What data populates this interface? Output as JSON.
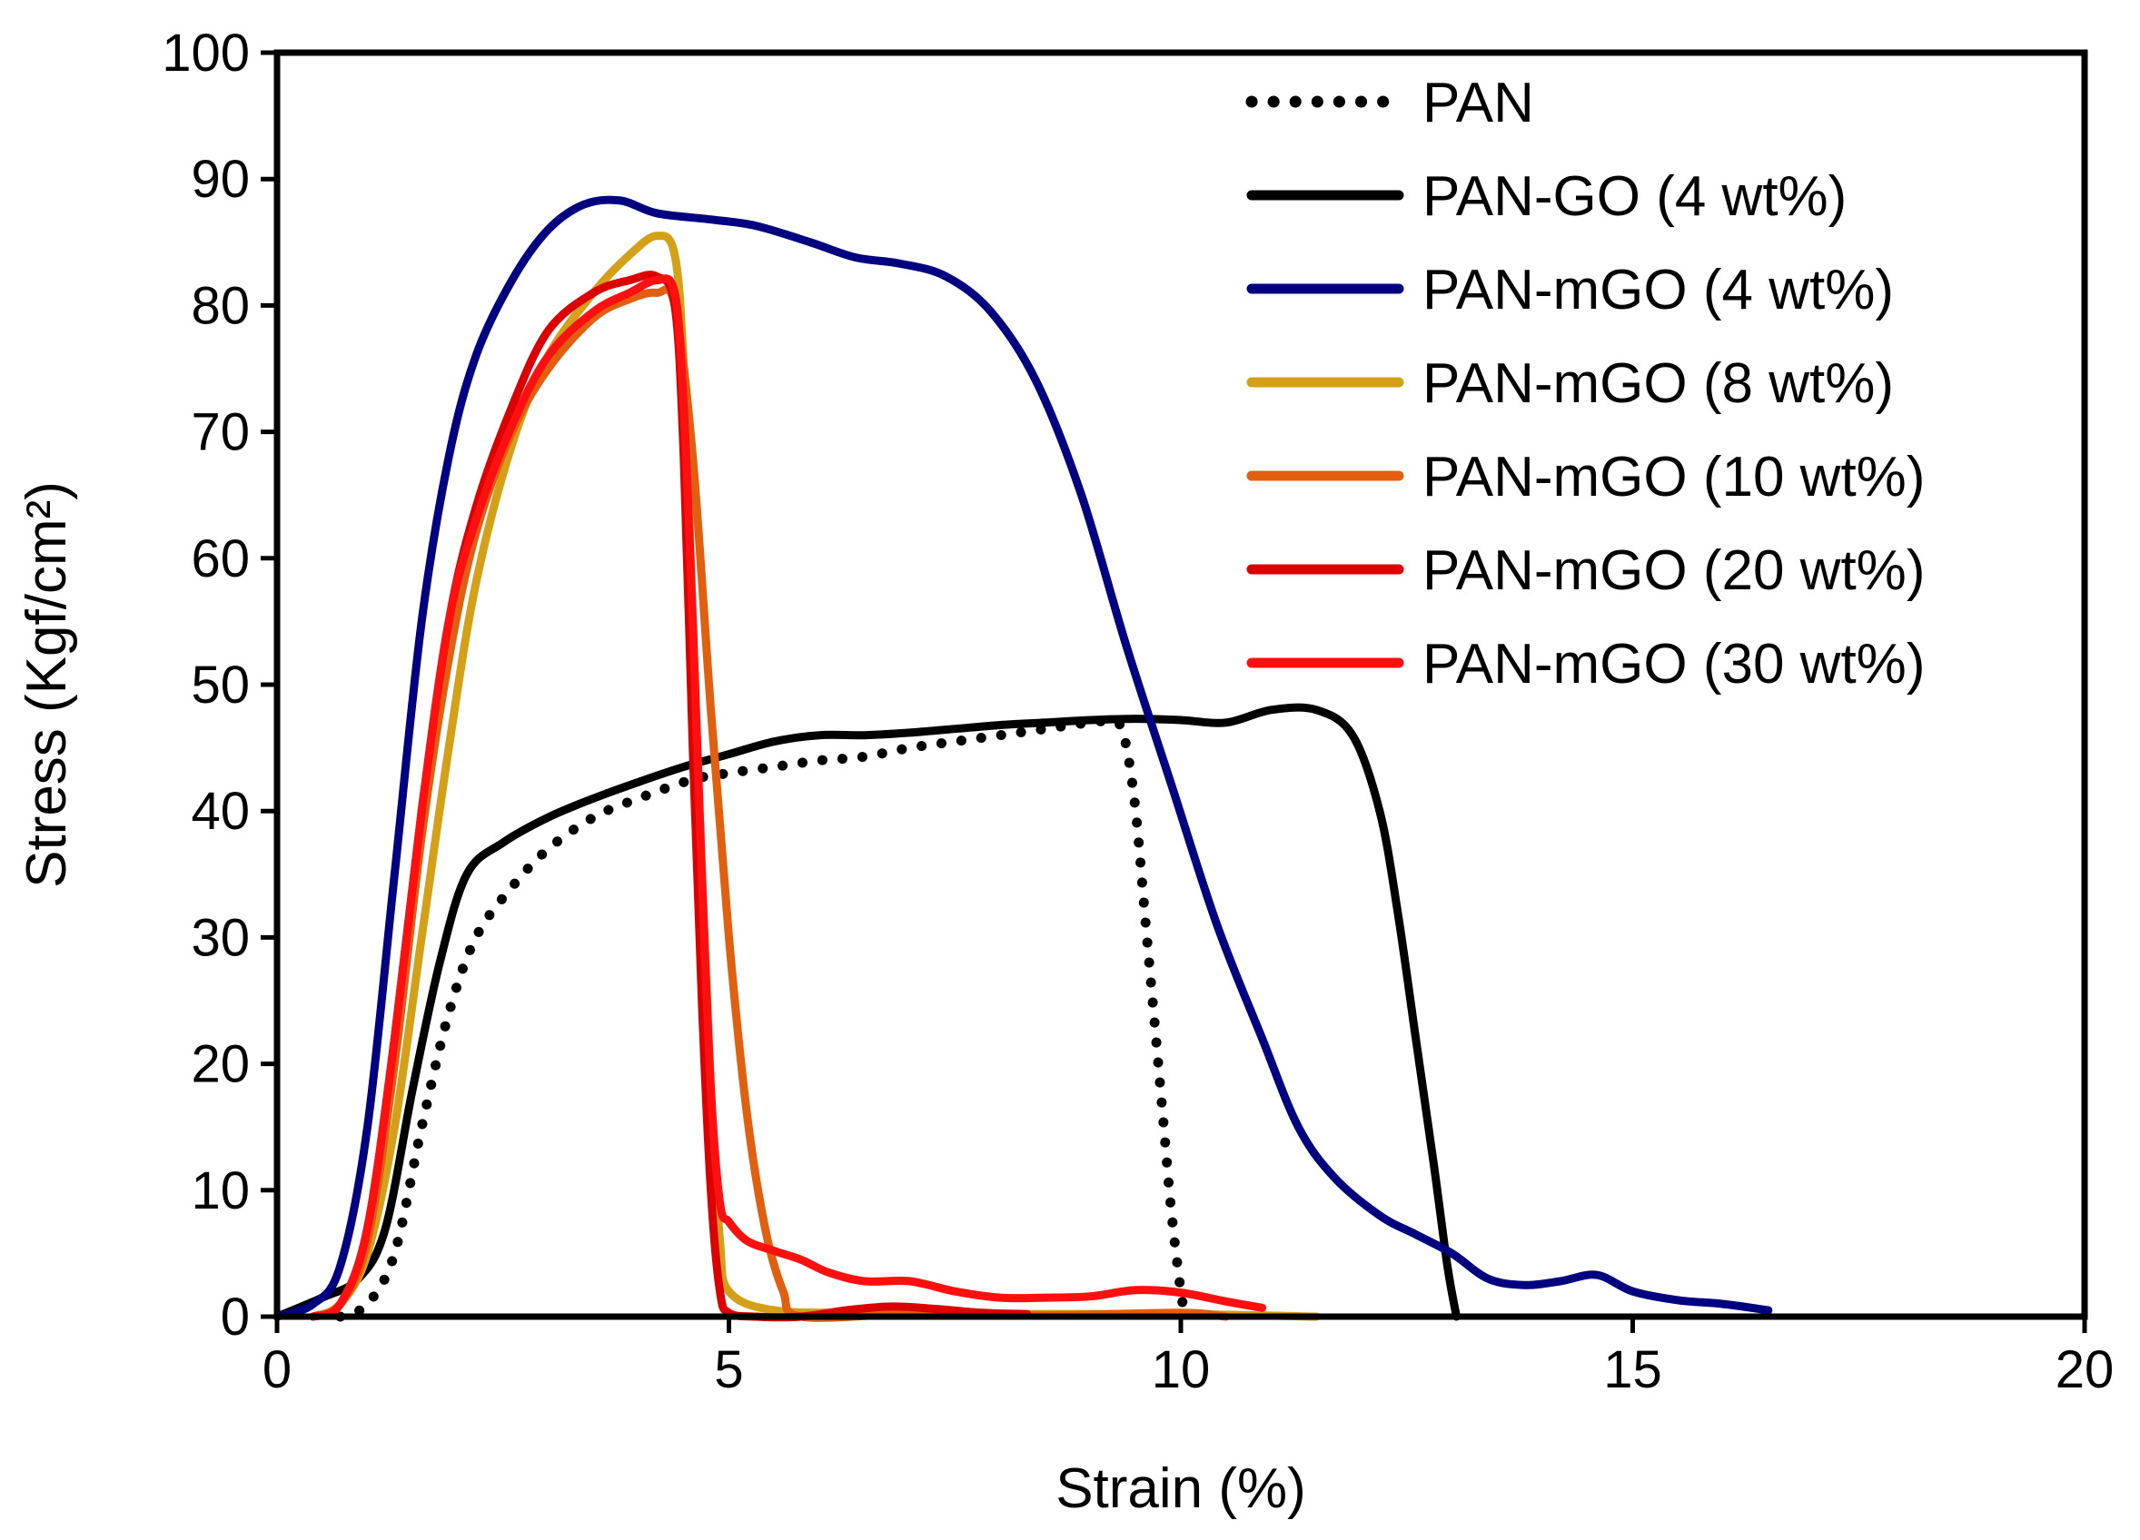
{
  "chart_data": {
    "type": "line",
    "title": "",
    "xlabel": "Strain (%)",
    "ylabel": "Stress (Kgf/cm²)",
    "xlim": [
      0,
      20
    ],
    "ylim": [
      0,
      100
    ],
    "xticks": [
      0,
      5,
      10,
      15,
      20
    ],
    "yticks": [
      0,
      10,
      20,
      30,
      40,
      50,
      60,
      70,
      80,
      90,
      100
    ],
    "grid": false,
    "legend_position": "top-right",
    "series": [
      {
        "name": "PAN",
        "color": "#000000",
        "style": "dotted",
        "points": [
          [
            0.7,
            0
          ],
          [
            1.0,
            1
          ],
          [
            1.3,
            5
          ],
          [
            1.6,
            15
          ],
          [
            1.9,
            24
          ],
          [
            2.2,
            30
          ],
          [
            2.6,
            34
          ],
          [
            3.0,
            37
          ],
          [
            3.5,
            39.5
          ],
          [
            4.0,
            41
          ],
          [
            4.6,
            42.5
          ],
          [
            5.0,
            43
          ],
          [
            5.5,
            43.5
          ],
          [
            6.0,
            44
          ],
          [
            6.5,
            44.3
          ],
          [
            7.0,
            45
          ],
          [
            7.5,
            45.5
          ],
          [
            8.0,
            46
          ],
          [
            8.5,
            46.5
          ],
          [
            9.0,
            47
          ],
          [
            9.3,
            47
          ],
          [
            9.4,
            45
          ],
          [
            9.5,
            40
          ],
          [
            9.6,
            32
          ],
          [
            9.7,
            24
          ],
          [
            9.8,
            16
          ],
          [
            9.9,
            8
          ],
          [
            10.0,
            2
          ],
          [
            10.05,
            0
          ]
        ]
      },
      {
        "name": "PAN-GO (4 wt%)",
        "color": "#000000",
        "style": "solid",
        "points": [
          [
            0,
            0
          ],
          [
            0.5,
            1.5
          ],
          [
            0.9,
            3
          ],
          [
            1.2,
            7
          ],
          [
            1.5,
            18
          ],
          [
            1.8,
            28
          ],
          [
            2.1,
            35
          ],
          [
            2.5,
            37.5
          ],
          [
            3.0,
            39.5
          ],
          [
            3.5,
            41
          ],
          [
            4.0,
            42.3
          ],
          [
            4.5,
            43.5
          ],
          [
            5.0,
            44.5
          ],
          [
            5.5,
            45.5
          ],
          [
            6.0,
            46
          ],
          [
            6.5,
            46
          ],
          [
            7.0,
            46.2
          ],
          [
            7.5,
            46.5
          ],
          [
            8.0,
            46.8
          ],
          [
            8.5,
            47
          ],
          [
            9.0,
            47.2
          ],
          [
            9.5,
            47.3
          ],
          [
            10.0,
            47.2
          ],
          [
            10.5,
            47
          ],
          [
            11.0,
            48
          ],
          [
            11.5,
            48
          ],
          [
            11.9,
            46
          ],
          [
            12.2,
            40
          ],
          [
            12.4,
            32
          ],
          [
            12.6,
            22
          ],
          [
            12.8,
            12
          ],
          [
            12.95,
            4
          ],
          [
            13.05,
            0
          ]
        ]
      },
      {
        "name": "PAN-mGO (4 wt%)",
        "color": "#000080",
        "style": "solid",
        "points": [
          [
            0,
            0
          ],
          [
            0.4,
            1
          ],
          [
            0.7,
            4
          ],
          [
            1.0,
            15
          ],
          [
            1.3,
            35
          ],
          [
            1.6,
            55
          ],
          [
            1.9,
            68
          ],
          [
            2.2,
            76
          ],
          [
            2.6,
            82
          ],
          [
            3.0,
            86
          ],
          [
            3.4,
            88
          ],
          [
            3.8,
            88.3
          ],
          [
            4.2,
            87.3
          ],
          [
            4.8,
            86.8
          ],
          [
            5.3,
            86.3
          ],
          [
            5.9,
            85
          ],
          [
            6.4,
            83.8
          ],
          [
            6.9,
            83.3
          ],
          [
            7.4,
            82.3
          ],
          [
            7.9,
            79.5
          ],
          [
            8.4,
            74
          ],
          [
            8.9,
            65
          ],
          [
            9.4,
            53
          ],
          [
            9.9,
            42
          ],
          [
            10.4,
            31
          ],
          [
            10.9,
            22
          ],
          [
            11.3,
            15
          ],
          [
            11.7,
            11
          ],
          [
            12.2,
            8
          ],
          [
            12.6,
            6.5
          ],
          [
            13.0,
            5
          ],
          [
            13.4,
            3
          ],
          [
            13.8,
            2.5
          ],
          [
            14.2,
            2.8
          ],
          [
            14.6,
            3.3
          ],
          [
            15.0,
            2
          ],
          [
            15.5,
            1.3
          ],
          [
            16.0,
            1
          ],
          [
            16.5,
            0.5
          ]
        ]
      },
      {
        "name": "PAN-mGO (8 wt%)",
        "color": "#D4A017",
        "style": "solid",
        "points": [
          [
            0.4,
            0
          ],
          [
            0.7,
            1
          ],
          [
            1.0,
            5
          ],
          [
            1.3,
            15
          ],
          [
            1.6,
            30
          ],
          [
            1.9,
            45
          ],
          [
            2.2,
            58
          ],
          [
            2.6,
            69
          ],
          [
            3.0,
            76
          ],
          [
            3.5,
            81
          ],
          [
            3.9,
            84
          ],
          [
            4.2,
            85.5
          ],
          [
            4.4,
            84
          ],
          [
            4.5,
            75
          ],
          [
            4.6,
            55
          ],
          [
            4.7,
            35
          ],
          [
            4.8,
            18
          ],
          [
            4.9,
            6
          ],
          [
            5.0,
            2
          ],
          [
            5.5,
            0.5
          ],
          [
            6.5,
            0.3
          ],
          [
            8.0,
            0.2
          ],
          [
            10.0,
            0.2
          ],
          [
            11.5,
            0
          ]
        ]
      },
      {
        "name": "PAN-mGO (10 wt%)",
        "color": "#E06010",
        "style": "solid",
        "points": [
          [
            0.4,
            0
          ],
          [
            0.7,
            1
          ],
          [
            1.0,
            6
          ],
          [
            1.3,
            20
          ],
          [
            1.6,
            38
          ],
          [
            1.9,
            52
          ],
          [
            2.2,
            62
          ],
          [
            2.6,
            70
          ],
          [
            3.0,
            75
          ],
          [
            3.5,
            79
          ],
          [
            3.9,
            80.5
          ],
          [
            4.2,
            81
          ],
          [
            4.4,
            80
          ],
          [
            4.6,
            68
          ],
          [
            4.8,
            48
          ],
          [
            5.0,
            30
          ],
          [
            5.2,
            16
          ],
          [
            5.4,
            7
          ],
          [
            5.6,
            2
          ],
          [
            5.8,
            0
          ],
          [
            7.0,
            0.2
          ],
          [
            8.5,
            0.1
          ],
          [
            10.0,
            0.3
          ],
          [
            10.5,
            0
          ]
        ]
      },
      {
        "name": "PAN-mGO (20 wt%)",
        "color": "#DD0000",
        "style": "solid",
        "points": [
          [
            0.4,
            0
          ],
          [
            0.7,
            1
          ],
          [
            1.0,
            7
          ],
          [
            1.3,
            22
          ],
          [
            1.6,
            40
          ],
          [
            1.9,
            55
          ],
          [
            2.2,
            64
          ],
          [
            2.6,
            72
          ],
          [
            3.0,
            78
          ],
          [
            3.5,
            81
          ],
          [
            3.9,
            82
          ],
          [
            4.2,
            82.3
          ],
          [
            4.4,
            80
          ],
          [
            4.5,
            68
          ],
          [
            4.6,
            45
          ],
          [
            4.7,
            25
          ],
          [
            4.8,
            10
          ],
          [
            4.9,
            2
          ],
          [
            5.0,
            0.3
          ],
          [
            5.3,
            0
          ],
          [
            5.8,
            0
          ],
          [
            6.3,
            0.5
          ],
          [
            6.8,
            0.8
          ],
          [
            7.3,
            0.6
          ],
          [
            7.8,
            0.3
          ],
          [
            8.3,
            0.2
          ]
        ]
      },
      {
        "name": "PAN-mGO (30 wt%)",
        "color": "#FF1010",
        "style": "solid",
        "points": [
          [
            0.4,
            0
          ],
          [
            0.7,
            1
          ],
          [
            1.0,
            7
          ],
          [
            1.3,
            22
          ],
          [
            1.6,
            40
          ],
          [
            1.9,
            55
          ],
          [
            2.2,
            63
          ],
          [
            2.6,
            70.5
          ],
          [
            3.0,
            76
          ],
          [
            3.5,
            79.5
          ],
          [
            3.9,
            81
          ],
          [
            4.2,
            82
          ],
          [
            4.4,
            81
          ],
          [
            4.5,
            72
          ],
          [
            4.6,
            55
          ],
          [
            4.7,
            35
          ],
          [
            4.8,
            18
          ],
          [
            4.9,
            9
          ],
          [
            5.0,
            7.5
          ],
          [
            5.2,
            6
          ],
          [
            5.5,
            5.2
          ],
          [
            5.8,
            4.5
          ],
          [
            6.1,
            3.5
          ],
          [
            6.5,
            2.8
          ],
          [
            7.0,
            2.8
          ],
          [
            7.5,
            2
          ],
          [
            8.0,
            1.5
          ],
          [
            8.5,
            1.5
          ],
          [
            9.0,
            1.6
          ],
          [
            9.5,
            2.1
          ],
          [
            10.0,
            1.9
          ],
          [
            10.5,
            1.2
          ],
          [
            10.9,
            0.7
          ]
        ]
      }
    ]
  }
}
